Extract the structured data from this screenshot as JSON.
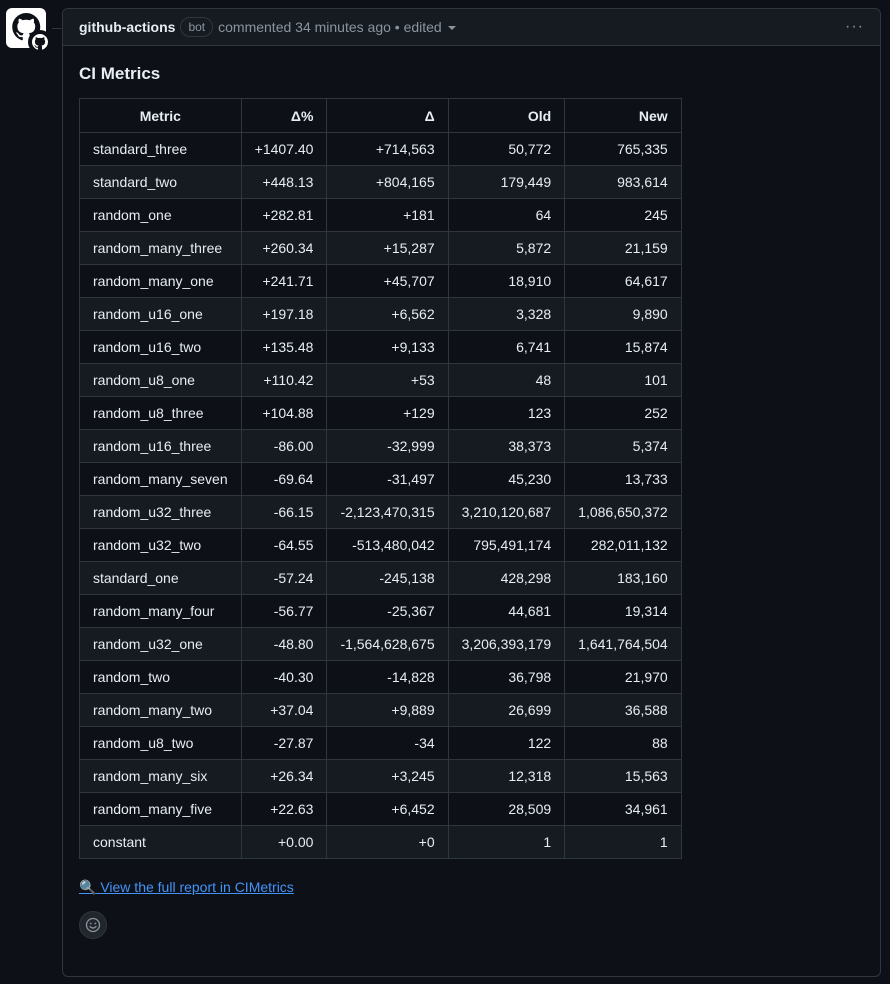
{
  "header": {
    "author": "github-actions",
    "badge": "bot",
    "meta": "commented 34 minutes ago • edited",
    "menu_label": "···"
  },
  "body": {
    "title": "CI Metrics",
    "table": {
      "headers": [
        "Metric",
        "Δ%",
        "Δ",
        "Old",
        "New"
      ],
      "rows": [
        [
          "standard_three",
          "+1407.40",
          "+714,563",
          "50,772",
          "765,335"
        ],
        [
          "standard_two",
          "+448.13",
          "+804,165",
          "179,449",
          "983,614"
        ],
        [
          "random_one",
          "+282.81",
          "+181",
          "64",
          "245"
        ],
        [
          "random_many_three",
          "+260.34",
          "+15,287",
          "5,872",
          "21,159"
        ],
        [
          "random_many_one",
          "+241.71",
          "+45,707",
          "18,910",
          "64,617"
        ],
        [
          "random_u16_one",
          "+197.18",
          "+6,562",
          "3,328",
          "9,890"
        ],
        [
          "random_u16_two",
          "+135.48",
          "+9,133",
          "6,741",
          "15,874"
        ],
        [
          "random_u8_one",
          "+110.42",
          "+53",
          "48",
          "101"
        ],
        [
          "random_u8_three",
          "+104.88",
          "+129",
          "123",
          "252"
        ],
        [
          "random_u16_three",
          "-86.00",
          "-32,999",
          "38,373",
          "5,374"
        ],
        [
          "random_many_seven",
          "-69.64",
          "-31,497",
          "45,230",
          "13,733"
        ],
        [
          "random_u32_three",
          "-66.15",
          "-2,123,470,315",
          "3,210,120,687",
          "1,086,650,372"
        ],
        [
          "random_u32_two",
          "-64.55",
          "-513,480,042",
          "795,491,174",
          "282,011,132"
        ],
        [
          "standard_one",
          "-57.24",
          "-245,138",
          "428,298",
          "183,160"
        ],
        [
          "random_many_four",
          "-56.77",
          "-25,367",
          "44,681",
          "19,314"
        ],
        [
          "random_u32_one",
          "-48.80",
          "-1,564,628,675",
          "3,206,393,179",
          "1,641,764,504"
        ],
        [
          "random_two",
          "-40.30",
          "-14,828",
          "36,798",
          "21,970"
        ],
        [
          "random_many_two",
          "+37.04",
          "+9,889",
          "26,699",
          "36,588"
        ],
        [
          "random_u8_two",
          "-27.87",
          "-34",
          "122",
          "88"
        ],
        [
          "random_many_six",
          "+26.34",
          "+3,245",
          "12,318",
          "15,563"
        ],
        [
          "random_many_five",
          "+22.63",
          "+6,452",
          "28,509",
          "34,961"
        ],
        [
          "constant",
          "+0.00",
          "+0",
          "1",
          "1"
        ]
      ]
    },
    "report_link": {
      "icon": "🔍",
      "text": "View the full report in CIMetrics"
    }
  },
  "icons": {
    "avatar": "github-logo-icon",
    "badge": "github-logo-icon",
    "reaction": "smiley-icon"
  }
}
